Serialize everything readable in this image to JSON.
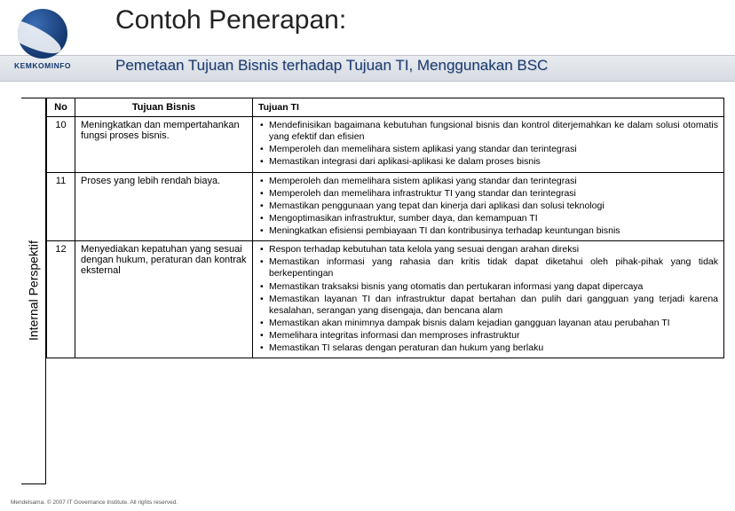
{
  "logo_label": "KEMKOMINFO",
  "title": "Contoh Penerapan:",
  "subtitle": "Pemetaan Tujuan Bisnis terhadap Tujuan TI, Menggunakan BSC",
  "vertical_label": "Internal Perspektif",
  "columns": {
    "no": "No",
    "bisnis": "Tujuan Bisnis",
    "ti": "Tujuan TI"
  },
  "rows": [
    {
      "no": "10",
      "bisnis": "Meningkatkan dan mempertahankan fungsi proses bisnis.",
      "ti": [
        "Mendefinisikan bagaimana kebutuhan fungsional bisnis dan kontrol diterjemahkan ke dalam solusi otomatis yang efektif dan efisien",
        "Memperoleh dan memelihara sistem aplikasi yang standar dan terintegrasi",
        "Memastikan integrasi dari aplikasi-aplikasi ke dalam proses bisnis"
      ]
    },
    {
      "no": "11",
      "bisnis": "Proses yang lebih rendah biaya.",
      "ti": [
        "Memperoleh dan memelihara sistem aplikasi yang standar dan terintegrasi",
        "Memperoleh dan memelihara infrastruktur TI yang standar dan terintegrasi",
        "Memastikan penggunaan yang tepat dan kinerja dari aplikasi dan solusi teknologi",
        "Mengoptimasikan infrastruktur, sumber daya, dan kemampuan TI",
        "Meningkatkan efisiensi pembiayaan TI dan kontribusinya terhadap keuntungan bisnis"
      ]
    },
    {
      "no": "12",
      "bisnis": "Menyediakan kepatuhan yang sesuai dengan hukum, peraturan dan kontrak eksternal",
      "ti": [
        "Respon terhadap kebutuhan tata kelola yang sesuai dengan arahan direksi",
        "Memastikan informasi yang rahasia dan kritis tidak dapat diketahui oleh pihak-pihak yang tidak berkepentingan",
        "Memastikan traksaksi bisnis yang otomatis dan pertukaran informasi yang dapat dipercaya",
        "Memastikan layanan TI dan infrastruktur dapat bertahan dan pulih dari gangguan yang terjadi karena kesalahan, serangan yang disengaja, dan bencana alam",
        "Memastikan akan minimnya dampak bisnis dalam kejadian gangguan layanan atau perubahan TI",
        "Memelihara integritas informasi dan memproses infrastruktur",
        "Memastikan TI selaras dengan peraturan dan hukum yang berlaku"
      ]
    }
  ],
  "footer": "Mendelsama. © 2007 IT Governance Institute. All rights reserved."
}
